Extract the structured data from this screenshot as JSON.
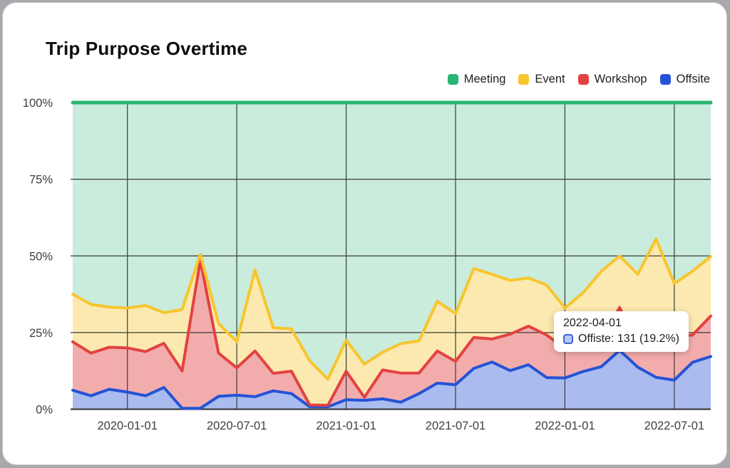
{
  "page": {
    "background": "#a9a7ac",
    "card_background": "#ffffff"
  },
  "header": {
    "title": "Trip Purpose Overtime"
  },
  "legend": {
    "items": [
      {
        "label": "Meeting",
        "color": "#29b474"
      },
      {
        "label": "Event",
        "color": "#f7c52d"
      },
      {
        "label": "Workshop",
        "color": "#e34242"
      },
      {
        "label": "Offsite",
        "color": "#2453d6"
      }
    ]
  },
  "tooltip": {
    "date": "2022-04-01",
    "label": "Offiste: 131 (19.2%)",
    "marker_fill": "#b6c8f0",
    "marker_border": "#3e66d8"
  },
  "chart_data": {
    "type": "area",
    "stacked": true,
    "percent_stacked": true,
    "title": "Trip Purpose Overtime",
    "xlabel": "",
    "ylabel": "",
    "ylim": [
      0,
      100
    ],
    "grid": true,
    "legend_position": "top-right",
    "x": [
      "2019-10-01",
      "2019-11-01",
      "2019-12-01",
      "2020-01-01",
      "2020-02-01",
      "2020-03-01",
      "2020-04-01",
      "2020-05-01",
      "2020-06-01",
      "2020-07-01",
      "2020-08-01",
      "2020-09-01",
      "2020-10-01",
      "2020-11-01",
      "2020-12-01",
      "2021-01-01",
      "2021-02-01",
      "2021-03-01",
      "2021-04-01",
      "2021-05-01",
      "2021-06-01",
      "2021-07-01",
      "2021-08-01",
      "2021-09-01",
      "2021-10-01",
      "2021-11-01",
      "2021-12-01",
      "2022-01-01",
      "2022-02-01",
      "2022-03-01",
      "2022-04-01",
      "2022-05-01",
      "2022-06-01",
      "2022-07-01",
      "2022-08-01",
      "2022-09-01"
    ],
    "x_tick_labels": [
      "2020-01-01",
      "2020-07-01",
      "2021-01-01",
      "2021-07-01",
      "2022-01-01",
      "2022-07-01"
    ],
    "x_tick_indices": [
      3,
      9,
      15,
      21,
      27,
      33
    ],
    "y_ticks": [
      {
        "percent": 0,
        "label": "0%"
      },
      {
        "percent": 25,
        "label": "25%"
      },
      {
        "percent": 50,
        "label": "50%"
      },
      {
        "percent": 75,
        "label": "75%"
      },
      {
        "percent": 100,
        "label": "100%"
      }
    ],
    "series": [
      {
        "name": "Offsite",
        "color": "#2453d6",
        "fill_alpha": 0.39,
        "line_width": 4,
        "values": [
          6.2,
          4.4,
          6.5,
          5.6,
          4.4,
          7.1,
          0.3,
          0.3,
          4.2,
          4.6,
          4.1,
          6,
          5.1,
          0.8,
          0.8,
          3.1,
          2.9,
          3.4,
          2.3,
          5.1,
          8.5,
          8,
          13.3,
          15.4,
          12.6,
          14.5,
          10.3,
          10.2,
          12.3,
          13.9,
          19.2,
          13.7,
          10.4,
          9.5,
          15.3,
          17.2
        ]
      },
      {
        "name": "Workshop",
        "color": "#e34242",
        "fill_alpha": 0.44,
        "line_width": 4,
        "values": [
          15.8,
          13.9,
          13.7,
          14.4,
          14.4,
          14.4,
          12.2,
          48.3,
          14.1,
          8.9,
          14.9,
          5.7,
          7.3,
          0.6,
          0.5,
          9.3,
          1,
          9.4,
          9.5,
          6.7,
          10.5,
          7.6,
          10.1,
          7.5,
          11.9,
          12.6,
          13.9,
          9.6,
          7.2,
          8.1,
          14,
          6.8,
          9.1,
          14.4,
          8.9,
          13.2
        ]
      },
      {
        "name": "Event",
        "color": "#f7c52d",
        "fill_alpha": 0.38,
        "line_width": 4,
        "values": [
          15.5,
          15.9,
          13.1,
          13,
          15,
          10,
          20,
          1.9,
          9.7,
          8.5,
          26.4,
          14.9,
          13.8,
          14.4,
          8.5,
          10.1,
          10.8,
          5.8,
          9.6,
          10.5,
          16.2,
          15.6,
          22.5,
          21.1,
          17.5,
          15.7,
          16.3,
          13.2,
          18.5,
          23,
          16.8,
          23.5,
          36,
          17.1,
          20.8,
          19.4
        ]
      },
      {
        "name": "Meeting",
        "color": "#29b474",
        "fill_alpha": 0.25,
        "line_width": 5,
        "values": [
          62.5,
          65.8,
          66.7,
          67,
          66.2,
          68.5,
          67.5,
          49.5,
          72,
          78,
          54.6,
          73.4,
          73.8,
          84.2,
          90.2,
          77.5,
          85.3,
          81.4,
          78.6,
          77.7,
          64.8,
          68.8,
          54.1,
          56,
          58,
          57.2,
          59.5,
          67,
          62,
          55,
          50,
          56,
          44.5,
          59,
          55,
          50.2
        ]
      }
    ],
    "grid_color": "#3b3b3b",
    "axis_color": "#2f2f2f",
    "tick_label_color": "#3c4043"
  }
}
